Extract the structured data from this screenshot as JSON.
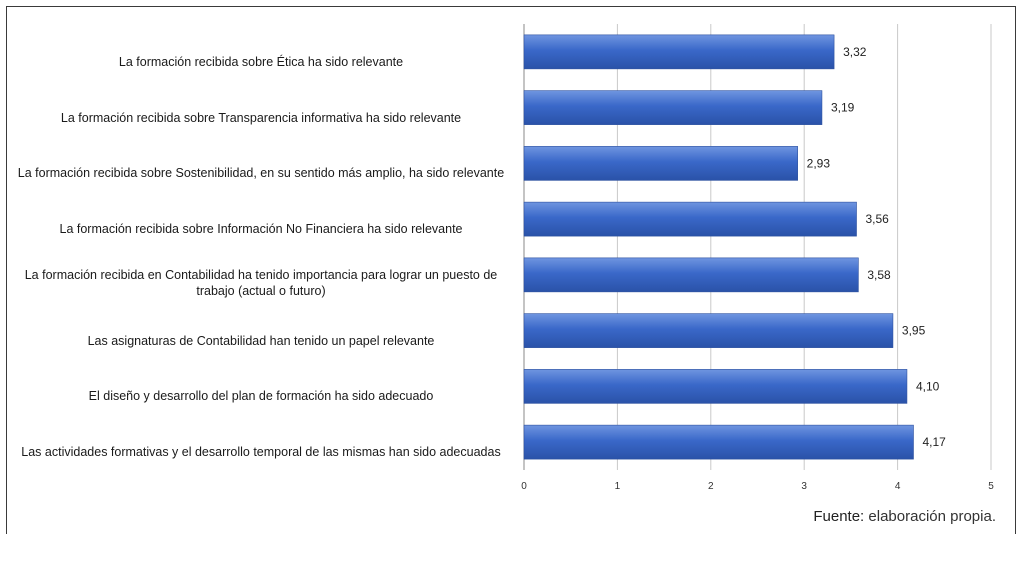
{
  "chart_data": {
    "type": "bar",
    "orientation": "horizontal",
    "categories": [
      "La formación recibida sobre Ética ha sido relevante",
      "La formación recibida sobre Transparencia informativa ha sido relevante",
      "La formación recibida sobre Sostenibilidad, en su sentido más amplio, ha sido relevante",
      "La formación recibida sobre Información No Financiera ha sido relevante",
      "La formación recibida en Contabilidad ha tenido importancia para lograr un puesto de trabajo (actual o futuro)",
      "Las asignaturas de Contabilidad han tenido un papel relevante",
      "El diseño y desarrollo del plan de formación ha sido adecuado",
      "Las actividades formativas y el desarrollo temporal de las mismas han sido adecuadas"
    ],
    "values": [
      3.32,
      3.19,
      2.93,
      3.56,
      3.58,
      3.95,
      4.1,
      4.17
    ],
    "value_labels": [
      "3,32",
      "3,19",
      "2,93",
      "3,56",
      "3,58",
      "3,95",
      "4,10",
      "4,17"
    ],
    "xlim": [
      0,
      5
    ],
    "xticks": [
      0,
      1,
      2,
      3,
      4,
      5
    ],
    "grid": "vertical",
    "bar_color": "#3566c8",
    "title": "",
    "xlabel": "",
    "ylabel": ""
  },
  "source": {
    "prefix": "Fuente:",
    "text": "elaboración propia."
  }
}
